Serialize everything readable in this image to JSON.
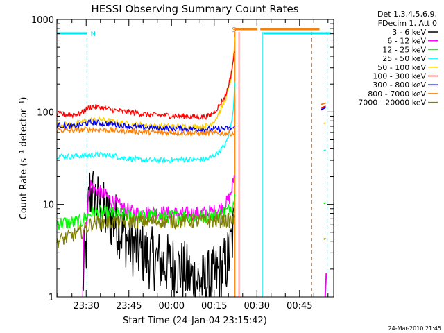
{
  "chart_data": {
    "type": "line",
    "title": "HESSI Observing Summary Count Rates",
    "xlabel": "Start Time (24-Jan-04 23:15:42)",
    "ylabel": "Count Rate (s⁻¹ detector⁻¹)",
    "yscale": "log",
    "ylim": [
      1,
      1000
    ],
    "xlim_minutes": [
      -10.3,
      87
    ],
    "yticks": [
      {
        "v": 1,
        "label": "1"
      },
      {
        "v": 10,
        "label": "10"
      },
      {
        "v": 100,
        "label": "100"
      },
      {
        "v": 1000,
        "label": "1000"
      }
    ],
    "xticks": [
      {
        "m": 0,
        "label": "23:30"
      },
      {
        "m": 15,
        "label": "23:45"
      },
      {
        "m": 30,
        "label": "00:00"
      },
      {
        "m": 45,
        "label": "00:15"
      },
      {
        "m": 60,
        "label": "00:30"
      },
      {
        "m": 75,
        "label": "00:45"
      }
    ],
    "legend_header": [
      "Det 1,3,4,5,6,9,",
      "FDecim 1, Att 0"
    ],
    "legend_placement": "outside-right",
    "footer_date": "24-Mar-2010 21:45",
    "flags": [
      {
        "label": "N",
        "color": "#00e5ee",
        "segments": [
          [
            -10.3,
            0.3
          ],
          [
            62.2,
            86
          ]
        ]
      },
      {
        "label": "S",
        "color": "#ff8000",
        "segments": [
          [
            52.2,
            60.2
          ],
          [
            61.2,
            82
          ]
        ]
      }
    ],
    "verticals": [
      {
        "m": 0.3,
        "color": "#00e5ee",
        "dash": true
      },
      {
        "m": 52.3,
        "color": "#ff8000",
        "dash": false
      },
      {
        "m": 53.7,
        "color": "#ff0000",
        "dash": false
      },
      {
        "m": 61.9,
        "color": "#00e5ee",
        "dash": false
      },
      {
        "m": 79.3,
        "color": "#ff8000",
        "dash": true
      },
      {
        "m": 84.7,
        "color": "#00e5ee",
        "dash": true
      }
    ],
    "series": [
      {
        "name": "3 - 6 keV",
        "color": "#000000",
        "points": [
          [
            -1.2,
            1
          ],
          [
            -0.9,
            2
          ],
          [
            0.3,
            4
          ],
          [
            1,
            14
          ],
          [
            3,
            12
          ],
          [
            5,
            9
          ],
          [
            7,
            7.5
          ],
          [
            9,
            7
          ],
          [
            11,
            6
          ],
          [
            13,
            5
          ],
          [
            15,
            4
          ],
          [
            17,
            3.5
          ],
          [
            19,
            3
          ],
          [
            21,
            2.8
          ],
          [
            23,
            2.6
          ],
          [
            25,
            2.5
          ],
          [
            27,
            2.3
          ],
          [
            29,
            2.2
          ],
          [
            31,
            2.1
          ],
          [
            33,
            2
          ],
          [
            35,
            1.8
          ],
          [
            37,
            1.6
          ],
          [
            39,
            1.5
          ],
          [
            41,
            1.4
          ],
          [
            43,
            1.5
          ],
          [
            45,
            1.6
          ],
          [
            47,
            1.8
          ],
          [
            49,
            2.2
          ],
          [
            50.5,
            3
          ],
          [
            51.5,
            4.5
          ],
          [
            52,
            6
          ]
        ]
      },
      {
        "name": "6 - 12 keV",
        "color": "#ff00ff",
        "points": [
          [
            -1.2,
            1
          ],
          [
            -0.9,
            6.2
          ],
          [
            0.3,
            6.5
          ],
          [
            0.8,
            12
          ],
          [
            1.5,
            17
          ],
          [
            3,
            14.5
          ],
          [
            6,
            13
          ],
          [
            9,
            11
          ],
          [
            12,
            9.5
          ],
          [
            15,
            8.5
          ],
          [
            18,
            8
          ],
          [
            22,
            8.2
          ],
          [
            26,
            8.1
          ],
          [
            30,
            8
          ],
          [
            34,
            7.9
          ],
          [
            38,
            8
          ],
          [
            42,
            8.1
          ],
          [
            45,
            8.3
          ],
          [
            47,
            9
          ],
          [
            49,
            10
          ],
          [
            50.5,
            12
          ],
          [
            51.5,
            16
          ],
          [
            52.2,
            22
          ]
        ]
      },
      {
        "name": "12 - 25 keV",
        "color": "#00ff00",
        "points": [
          [
            -10.3,
            6.3
          ],
          [
            -2,
            6.4
          ],
          [
            0,
            7.4
          ],
          [
            2,
            8.2
          ],
          [
            5,
            8.1
          ],
          [
            10,
            7.9
          ],
          [
            15,
            7.6
          ],
          [
            20,
            7.4
          ],
          [
            25,
            7.5
          ],
          [
            30,
            7.4
          ],
          [
            35,
            7.5
          ],
          [
            40,
            7.4
          ],
          [
            45,
            7.6
          ],
          [
            48,
            8
          ],
          [
            50,
            8.7
          ],
          [
            51.5,
            10
          ],
          [
            52.2,
            12
          ]
        ]
      },
      {
        "name": "25 - 50 keV",
        "color": "#00ffff",
        "points": [
          [
            -10.3,
            33.5
          ],
          [
            -5,
            33
          ],
          [
            0,
            34
          ],
          [
            5,
            34.5
          ],
          [
            10,
            33.5
          ],
          [
            13,
            32
          ],
          [
            18,
            30.5
          ],
          [
            22,
            30
          ],
          [
            28,
            30
          ],
          [
            34,
            30.5
          ],
          [
            40,
            30.5
          ],
          [
            43,
            31
          ],
          [
            45,
            34
          ],
          [
            47,
            38
          ],
          [
            49,
            45
          ],
          [
            50,
            55
          ],
          [
            51,
            75
          ],
          [
            51.7,
            110
          ],
          [
            52.2,
            200
          ]
        ]
      },
      {
        "name": "50 - 100 keV",
        "color": "#ffd000",
        "points": [
          [
            -10.3,
            73
          ],
          [
            -5,
            72
          ],
          [
            0,
            80
          ],
          [
            5,
            83
          ],
          [
            10,
            78
          ],
          [
            15,
            74
          ],
          [
            20,
            72
          ],
          [
            25,
            70
          ],
          [
            30,
            70
          ],
          [
            35,
            69
          ],
          [
            40,
            69
          ],
          [
            43,
            71
          ],
          [
            45,
            80
          ],
          [
            47,
            100
          ],
          [
            49,
            140
          ],
          [
            50.5,
            200
          ],
          [
            51.5,
            320
          ],
          [
            52.2,
            600
          ]
        ]
      },
      {
        "name": "100 - 300 keV",
        "color": "#ff0000",
        "points": [
          [
            -10.3,
            95
          ],
          [
            -5,
            93
          ],
          [
            -2,
            96
          ],
          [
            0,
            107
          ],
          [
            2,
            114
          ],
          [
            5,
            112
          ],
          [
            10,
            104
          ],
          [
            13,
            101
          ],
          [
            15,
            100
          ],
          [
            18,
            97
          ],
          [
            22,
            93
          ],
          [
            28,
            92
          ],
          [
            34,
            90
          ],
          [
            40,
            88
          ],
          [
            43,
            90
          ],
          [
            45,
            100
          ],
          [
            47,
            120
          ],
          [
            49,
            150
          ],
          [
            50.5,
            220
          ],
          [
            51.5,
            330
          ],
          [
            52.2,
            450
          ]
        ]
      },
      {
        "name": "300 - 800 keV",
        "color": "#0000ff",
        "points": [
          [
            -10.3,
            72
          ],
          [
            -5,
            70
          ],
          [
            -2,
            72
          ],
          [
            0,
            76
          ],
          [
            3,
            77
          ],
          [
            6,
            75
          ],
          [
            10,
            73
          ],
          [
            15,
            70
          ],
          [
            20,
            68
          ],
          [
            25,
            67
          ],
          [
            30,
            66
          ],
          [
            35,
            66
          ],
          [
            40,
            65
          ],
          [
            45,
            65
          ],
          [
            50,
            66
          ],
          [
            52.2,
            67
          ]
        ]
      },
      {
        "name": "800 - 7000 keV",
        "color": "#ff8000",
        "points": [
          [
            -10.3,
            64
          ],
          [
            -5,
            63
          ],
          [
            0,
            65
          ],
          [
            5,
            64
          ],
          [
            10,
            63
          ],
          [
            15,
            62
          ],
          [
            20,
            61
          ],
          [
            25,
            60
          ],
          [
            30,
            60
          ],
          [
            35,
            59
          ],
          [
            40,
            59
          ],
          [
            45,
            59
          ],
          [
            50,
            59
          ],
          [
            52.2,
            59
          ]
        ]
      },
      {
        "name": "7000 - 20000 keV",
        "color": "#808000",
        "points": [
          [
            -10.3,
            4
          ],
          [
            -5,
            4.6
          ],
          [
            -1,
            5.2
          ],
          [
            0,
            5.5
          ],
          [
            2,
            6.3
          ],
          [
            10,
            6.5
          ],
          [
            20,
            6.6
          ],
          [
            30,
            6.6
          ],
          [
            40,
            6.6
          ],
          [
            52.2,
            6.7
          ]
        ]
      }
    ],
    "late_segments": [
      {
        "color": "#ff0000",
        "points": [
          [
            82.5,
            110
          ],
          [
            84.2,
            115
          ]
        ]
      },
      {
        "color": "#0000ff",
        "points": [
          [
            82.5,
            105
          ],
          [
            84.2,
            112
          ]
        ]
      },
      {
        "color": "#ff8000",
        "points": [
          [
            82.5,
            120
          ],
          [
            84.2,
            125
          ]
        ]
      },
      {
        "color": "#ffd000",
        "points": [
          [
            83.5,
            75
          ],
          [
            84.2,
            76
          ]
        ]
      },
      {
        "color": "#00ffff",
        "points": [
          [
            83.5,
            38
          ],
          [
            84.2,
            39
          ]
        ]
      },
      {
        "color": "#00ff00",
        "points": [
          [
            83.5,
            10.2
          ],
          [
            84.2,
            10.5
          ]
        ]
      },
      {
        "color": "#808000",
        "points": [
          [
            83.5,
            4.2
          ],
          [
            84.2,
            4.3
          ]
        ]
      },
      {
        "color": "#ff00ff",
        "points": [
          [
            84,
            1
          ],
          [
            84.4,
            1.8
          ]
        ]
      }
    ]
  }
}
